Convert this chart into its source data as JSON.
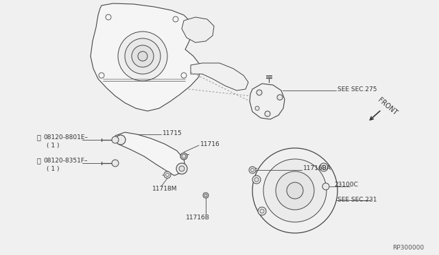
{
  "bg_color": "#f0f0f0",
  "ref_code": "RP300000",
  "labels": {
    "see_sec_275": "SEE SEC.275",
    "see_sec_231": "SEE SEC.231",
    "front": "FRONT",
    "11715": "11715",
    "11716": "11716",
    "11716BA": "11716BA",
    "11716B": "11716B",
    "11718M": "11718M",
    "23100C": "23100C",
    "bolt_F_part": "08120-8801E",
    "bolt_F_circle": "F",
    "bolt_F_sub": "( 1 )",
    "bolt_B_part": "08120-8351F",
    "bolt_B_circle": "B",
    "bolt_B_sub": "( 1 )"
  },
  "lc": "#444444",
  "tc": "#333333",
  "fs": 6.5
}
